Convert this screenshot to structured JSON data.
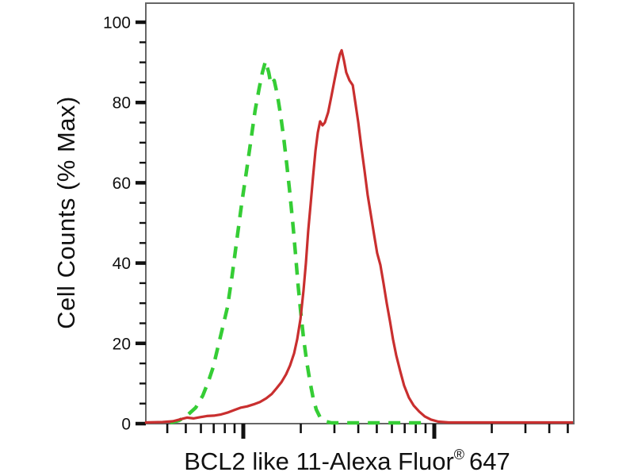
{
  "figure": {
    "background": "#ffffff",
    "ylabel": "Cell Counts (% Max)",
    "xlabel_full": "BCL2 like 11-Alexa Fluor® 647",
    "xlabel_prefix": "BCL2 like 11-Alexa Fluor",
    "xlabel_reg": "®",
    "xlabel_suffix": "647"
  },
  "colors": {
    "green_curve": "#35cd35",
    "red_curve": "#c92f2f",
    "frame": "#666666",
    "ticks": "#111111",
    "text": "#111111"
  },
  "chart_data": {
    "type": "line",
    "title": "",
    "xlabel": "BCL2 like 11-Alexa Fluor® 647",
    "ylabel": "Cell Counts (% Max)",
    "legend_shown": false,
    "grid": false,
    "x_axis": {
      "scale": "log",
      "numeric_tick_labels_shown": false,
      "x_units": "decades relative to first major (decade) tick",
      "visible_range_decades": [
        -0.515,
        1.726
      ],
      "major_tick_decades": [
        0,
        1
      ],
      "minor_ticks": "log-spaced at multipliers 2-9 within each decade"
    },
    "y_axis": {
      "label": "Cell Counts (% Max)",
      "range": [
        0,
        100
      ],
      "major_ticks": [
        0,
        20,
        40,
        60,
        80,
        100
      ],
      "minor_tick_step": 5
    },
    "series": [
      {
        "name": "green_dashed_histogram",
        "style": "dashed",
        "color": "#35cd35",
        "peak": {
          "x_dec": 0.116,
          "y_pct": 90.3
        },
        "points": [
          [
            -0.382,
            0.2
          ],
          [
            -0.336,
            0.8
          ],
          [
            -0.295,
            2
          ],
          [
            -0.249,
            4
          ],
          [
            -0.212,
            7
          ],
          [
            -0.183,
            10.5
          ],
          [
            -0.158,
            14
          ],
          [
            -0.133,
            19
          ],
          [
            -0.108,
            24
          ],
          [
            -0.083,
            29
          ],
          [
            -0.058,
            37
          ],
          [
            -0.033,
            46
          ],
          [
            -0.008,
            55
          ],
          [
            0.017,
            63
          ],
          [
            0.041,
            71
          ],
          [
            0.062,
            78
          ],
          [
            0.083,
            83.5
          ],
          [
            0.1,
            87.5
          ],
          [
            0.116,
            90.3
          ],
          [
            0.133,
            87.5
          ],
          [
            0.145,
            84.5
          ],
          [
            0.162,
            85.5
          ],
          [
            0.178,
            82
          ],
          [
            0.195,
            77
          ],
          [
            0.212,
            71
          ],
          [
            0.228,
            64.5
          ],
          [
            0.245,
            57
          ],
          [
            0.261,
            49
          ],
          [
            0.274,
            42
          ],
          [
            0.286,
            35
          ],
          [
            0.299,
            28.5
          ],
          [
            0.315,
            21.5
          ],
          [
            0.332,
            15.5
          ],
          [
            0.349,
            10.5
          ],
          [
            0.365,
            6.5
          ],
          [
            0.382,
            3.5
          ],
          [
            0.403,
            1.5
          ],
          [
            0.427,
            0.6
          ],
          [
            0.461,
            0.2
          ],
          [
            0.967,
            0.2
          ]
        ]
      },
      {
        "name": "red_solid_histogram",
        "style": "solid",
        "color": "#c92f2f",
        "peak": {
          "x_dec": 0.515,
          "y_pct": 93
        },
        "points": [
          [
            -0.515,
            0.3
          ],
          [
            -0.423,
            0.4
          ],
          [
            -0.369,
            0.6
          ],
          [
            -0.328,
            1.1
          ],
          [
            -0.295,
            1.5
          ],
          [
            -0.261,
            1.3
          ],
          [
            -0.228,
            1.6
          ],
          [
            -0.191,
            1.9
          ],
          [
            -0.154,
            2
          ],
          [
            -0.116,
            2.3
          ],
          [
            -0.079,
            2.8
          ],
          [
            -0.046,
            3.4
          ],
          [
            -0.012,
            4
          ],
          [
            0.021,
            4.3
          ],
          [
            0.054,
            4.8
          ],
          [
            0.087,
            5.4
          ],
          [
            0.12,
            6.3
          ],
          [
            0.149,
            7.4
          ],
          [
            0.174,
            8.8
          ],
          [
            0.199,
            10.3
          ],
          [
            0.224,
            12.3
          ],
          [
            0.245,
            14.5
          ],
          [
            0.266,
            17.5
          ],
          [
            0.282,
            21
          ],
          [
            0.299,
            26
          ],
          [
            0.315,
            33
          ],
          [
            0.328,
            40
          ],
          [
            0.34,
            48
          ],
          [
            0.353,
            55
          ],
          [
            0.365,
            61.5
          ],
          [
            0.378,
            68
          ],
          [
            0.39,
            72.5
          ],
          [
            0.402,
            75.3
          ],
          [
            0.415,
            74.3
          ],
          [
            0.427,
            75
          ],
          [
            0.444,
            77.5
          ],
          [
            0.461,
            81.5
          ],
          [
            0.477,
            85.5
          ],
          [
            0.494,
            89.5
          ],
          [
            0.506,
            92
          ],
          [
            0.515,
            93
          ],
          [
            0.527,
            90.5
          ],
          [
            0.539,
            87.5
          ],
          [
            0.556,
            85.5
          ],
          [
            0.573,
            84.3
          ],
          [
            0.585,
            80.5
          ],
          [
            0.602,
            75
          ],
          [
            0.618,
            69
          ],
          [
            0.635,
            63
          ],
          [
            0.651,
            57
          ],
          [
            0.668,
            52
          ],
          [
            0.685,
            47
          ],
          [
            0.701,
            42.5
          ],
          [
            0.718,
            39.5
          ],
          [
            0.734,
            35
          ],
          [
            0.751,
            30
          ],
          [
            0.768,
            25.5
          ],
          [
            0.784,
            21
          ],
          [
            0.801,
            17
          ],
          [
            0.822,
            13
          ],
          [
            0.842,
            9.5
          ],
          [
            0.867,
            6.5
          ],
          [
            0.892,
            4.5
          ],
          [
            0.921,
            3
          ],
          [
            0.95,
            1.8
          ],
          [
            0.983,
            1
          ],
          [
            1.021,
            0.5
          ],
          [
            1.075,
            0.3
          ],
          [
            1.3,
            0.3
          ],
          [
            1.726,
            0.3
          ]
        ]
      }
    ]
  }
}
